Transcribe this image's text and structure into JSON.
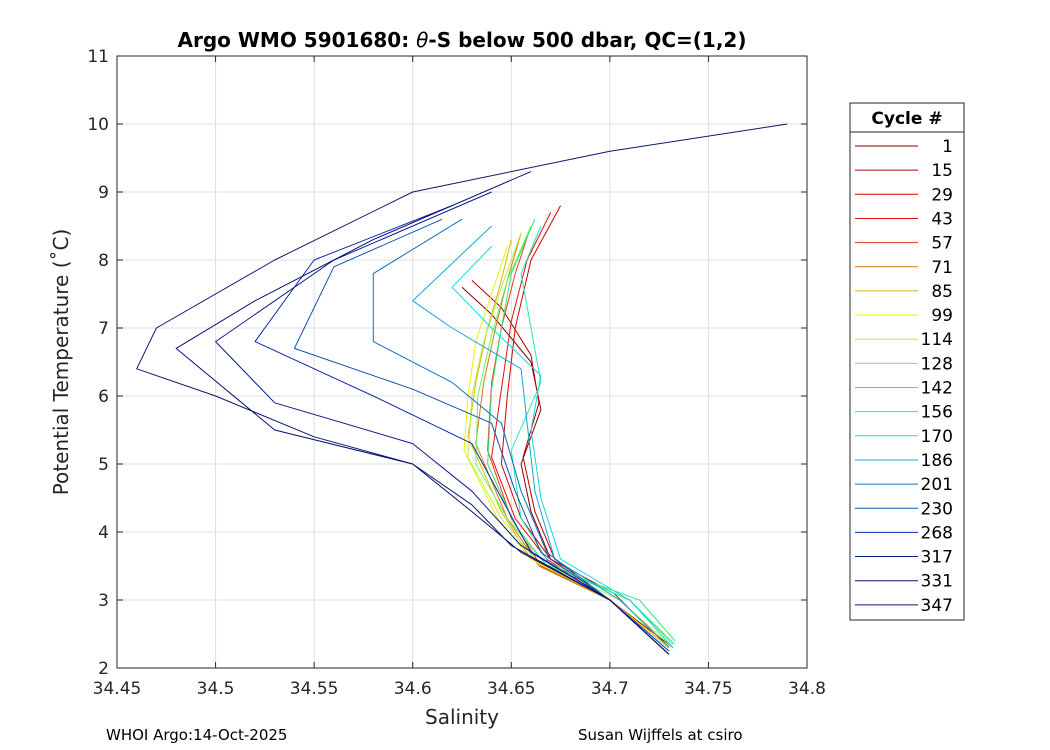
{
  "chart_data": {
    "type": "line",
    "title_prefix": "Argo WMO 5901680: ",
    "title_theta": "θ",
    "title_suffix": "-S below 500 dbar,  QC=(1,2)",
    "xlabel": "Salinity",
    "ylabel": "Potential Temperature (˚C)",
    "xlim": [
      34.45,
      34.8
    ],
    "ylim": [
      2,
      11
    ],
    "xticks": [
      "34.45",
      "34.5",
      "34.55",
      "34.6",
      "34.65",
      "34.7",
      "34.75",
      "34.8"
    ],
    "yticks": [
      "2",
      "3",
      "4",
      "5",
      "6",
      "7",
      "8",
      "9",
      "10",
      "11"
    ],
    "grid": true,
    "legend_position": "right",
    "legend_title": "Cycle #",
    "legend": [
      {
        "label": "1",
        "color": "#800000"
      },
      {
        "label": "15",
        "color": "#b00000"
      },
      {
        "label": "29",
        "color": "#d40000"
      },
      {
        "label": "43",
        "color": "#e01010"
      },
      {
        "label": "57",
        "color": "#e83a1a"
      },
      {
        "label": "71",
        "color": "#d47a00"
      },
      {
        "label": "85",
        "color": "#d8b800"
      },
      {
        "label": "99",
        "color": "#f0f000"
      },
      {
        "label": "114",
        "color": "#b8f040"
      },
      {
        "label": "128",
        "color": "#70f060"
      },
      {
        "label": "142",
        "color": "#30e878"
      },
      {
        "label": "156",
        "color": "#20e8c0"
      },
      {
        "label": "170",
        "color": "#10d8e8"
      },
      {
        "label": "186",
        "color": "#10a8d8"
      },
      {
        "label": "201",
        "color": "#1070c0"
      },
      {
        "label": "230",
        "color": "#1050b8"
      },
      {
        "label": "268",
        "color": "#1028b0"
      },
      {
        "label": "317",
        "color": "#0a1a90"
      },
      {
        "label": "331",
        "color": "#081070"
      },
      {
        "label": "347",
        "color": "#0a1870"
      }
    ],
    "series": [
      {
        "name": "1",
        "color": "#800000",
        "x": [
          34.625,
          34.64,
          34.66,
          34.665,
          34.655,
          34.66,
          34.67,
          34.7,
          34.73
        ],
        "y": [
          7.6,
          7.2,
          6.5,
          5.8,
          5.0,
          4.3,
          3.6,
          3.0,
          2.3
        ]
      },
      {
        "name": "15",
        "color": "#b00000",
        "x": [
          34.63,
          34.645,
          34.66,
          34.664,
          34.656,
          34.662,
          34.672,
          34.7,
          34.732
        ],
        "y": [
          7.7,
          7.3,
          6.6,
          5.9,
          5.1,
          4.3,
          3.6,
          3.0,
          2.3
        ]
      },
      {
        "name": "29",
        "color": "#d40000",
        "x": [
          34.675,
          34.66,
          34.652,
          34.648,
          34.645,
          34.655,
          34.67,
          34.702,
          34.73
        ],
        "y": [
          8.8,
          8.0,
          7.0,
          6.0,
          5.0,
          4.2,
          3.6,
          3.1,
          2.3
        ]
      },
      {
        "name": "43",
        "color": "#e01010",
        "x": [
          34.67,
          34.658,
          34.65,
          34.645,
          34.64,
          34.652,
          34.668,
          34.7,
          34.73
        ],
        "y": [
          8.7,
          8.0,
          7.1,
          6.1,
          5.1,
          4.2,
          3.6,
          3.0,
          2.3
        ]
      },
      {
        "name": "57",
        "color": "#e83a1a",
        "x": [
          34.66,
          34.652,
          34.645,
          34.64,
          34.638,
          34.65,
          34.665,
          34.7,
          34.73
        ],
        "y": [
          8.5,
          7.8,
          7.0,
          6.2,
          5.2,
          4.2,
          3.5,
          3.0,
          2.3
        ]
      },
      {
        "name": "71",
        "color": "#d47a00",
        "x": [
          34.655,
          34.648,
          34.642,
          34.636,
          34.632,
          34.648,
          34.664,
          34.7,
          34.73
        ],
        "y": [
          8.4,
          7.7,
          7.0,
          6.2,
          5.3,
          4.2,
          3.5,
          3.0,
          2.3
        ]
      },
      {
        "name": "85",
        "color": "#d8b800",
        "x": [
          34.65,
          34.644,
          34.638,
          34.632,
          34.628,
          34.645,
          34.66,
          34.7,
          34.73
        ],
        "y": [
          8.3,
          7.6,
          7.0,
          6.2,
          5.4,
          4.3,
          3.6,
          3.0,
          2.3
        ]
      },
      {
        "name": "99",
        "color": "#f0f000",
        "x": [
          34.648,
          34.64,
          34.632,
          34.628,
          34.626,
          34.643,
          34.66,
          34.7,
          34.73
        ],
        "y": [
          8.2,
          7.5,
          6.8,
          6.0,
          5.2,
          4.2,
          3.6,
          3.0,
          2.3
        ]
      },
      {
        "name": "114",
        "color": "#b8f040",
        "x": [
          34.655,
          34.645,
          34.636,
          34.63,
          34.628,
          34.645,
          34.662,
          34.705,
          34.732
        ],
        "y": [
          8.4,
          7.6,
          6.8,
          6.0,
          5.1,
          4.2,
          3.6,
          3.0,
          2.3
        ]
      },
      {
        "name": "128",
        "color": "#70f060",
        "x": [
          34.66,
          34.648,
          34.64,
          34.633,
          34.632,
          34.648,
          34.665,
          34.71,
          34.733
        ],
        "y": [
          8.5,
          7.7,
          6.9,
          6.0,
          5.0,
          4.2,
          3.6,
          3.0,
          2.35
        ]
      },
      {
        "name": "142",
        "color": "#30e878",
        "x": [
          34.662,
          34.65,
          34.645,
          34.64,
          34.638,
          34.652,
          34.668,
          34.715,
          34.733
        ],
        "y": [
          8.6,
          7.8,
          7.0,
          6.1,
          5.0,
          4.1,
          3.5,
          3.0,
          2.4
        ]
      },
      {
        "name": "156",
        "color": "#20e8c0",
        "x": [
          34.665,
          34.655,
          34.66,
          34.665,
          34.65,
          34.655,
          34.67,
          34.71,
          34.732
        ],
        "y": [
          8.5,
          7.8,
          7.0,
          6.2,
          5.2,
          4.2,
          3.5,
          3.0,
          2.35
        ]
      },
      {
        "name": "170",
        "color": "#10d8e8",
        "x": [
          34.64,
          34.62,
          34.64,
          34.665,
          34.66,
          34.665,
          34.675,
          34.71,
          34.732
        ],
        "y": [
          8.2,
          7.6,
          7.0,
          6.3,
          5.5,
          4.5,
          3.6,
          3.0,
          2.3
        ]
      },
      {
        "name": "186",
        "color": "#10a8d8",
        "x": [
          34.64,
          34.6,
          34.62,
          34.655,
          34.658,
          34.662,
          34.672,
          34.705,
          34.73
        ],
        "y": [
          8.5,
          7.4,
          7.0,
          6.4,
          5.6,
          4.6,
          3.6,
          3.0,
          2.3
        ]
      },
      {
        "name": "201",
        "color": "#1070c0",
        "x": [
          34.625,
          34.58,
          34.58,
          34.62,
          34.645,
          34.655,
          34.668,
          34.7,
          34.73
        ],
        "y": [
          8.6,
          7.8,
          6.8,
          6.2,
          5.6,
          4.6,
          3.7,
          3.0,
          2.25
        ]
      },
      {
        "name": "230",
        "color": "#1050b8",
        "x": [
          34.615,
          34.56,
          34.54,
          34.6,
          34.64,
          34.652,
          34.665,
          34.7,
          34.73
        ],
        "y": [
          8.6,
          7.9,
          6.7,
          6.1,
          5.6,
          4.6,
          3.7,
          3.0,
          2.25
        ]
      },
      {
        "name": "268",
        "color": "#1028b0",
        "x": [
          34.62,
          34.55,
          34.52,
          34.58,
          34.63,
          34.645,
          34.66,
          34.7,
          34.73
        ],
        "y": [
          8.8,
          8.0,
          6.8,
          6.0,
          5.3,
          4.5,
          3.7,
          3.0,
          2.2
        ]
      },
      {
        "name": "317",
        "color": "#0a1a90",
        "x": [
          34.64,
          34.56,
          34.5,
          34.53,
          34.6,
          34.63,
          34.655,
          34.7,
          34.73
        ],
        "y": [
          9.0,
          8.0,
          6.8,
          5.9,
          5.3,
          4.6,
          3.8,
          3.0,
          2.2
        ]
      },
      {
        "name": "331",
        "color": "#081070",
        "x": [
          34.66,
          34.58,
          34.52,
          34.48,
          34.53,
          34.6,
          34.63,
          34.655,
          34.7,
          34.73
        ],
        "y": [
          9.3,
          8.3,
          7.4,
          6.7,
          5.5,
          5.0,
          4.3,
          3.7,
          3.0,
          2.2
        ]
      },
      {
        "name": "347",
        "color": "#0a1870",
        "x": [
          34.79,
          34.7,
          34.6,
          34.53,
          34.47,
          34.46,
          34.5,
          34.55,
          34.6,
          34.63,
          34.65,
          34.7,
          34.73
        ],
        "y": [
          10.0,
          9.6,
          9.0,
          8.0,
          7.0,
          6.4,
          6.0,
          5.4,
          5.0,
          4.4,
          3.8,
          3.0,
          2.2
        ]
      }
    ]
  },
  "footer": {
    "left": "WHOI Argo:14-Oct-2025",
    "right": "Susan Wijffels at csiro"
  }
}
